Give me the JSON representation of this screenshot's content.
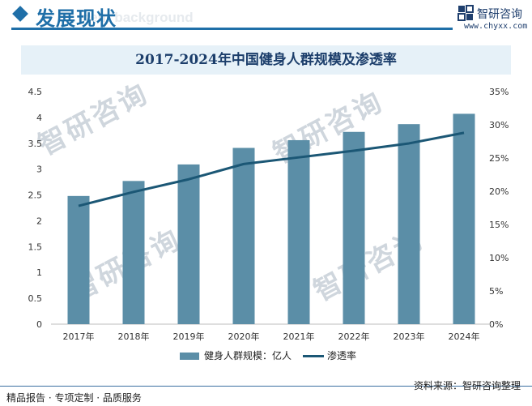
{
  "header": {
    "section_title": "发展现状",
    "section_watermark": "ment background",
    "brand_name": "智研咨询",
    "brand_url": "www.chyxx.com",
    "brand_icon": "zhiyan-logo-icon"
  },
  "footer": {
    "left_text": "精品报告 · 专项定制 · 品质服务",
    "source_text": "资料来源：智研咨询整理",
    "watermark_brand": "智研咨询"
  },
  "colors": {
    "accent": "#1f6fa8",
    "bar": "#5b8ea7",
    "line": "#1b5775",
    "title_band": "#e6f1f8"
  },
  "chart_data": {
    "type": "bar",
    "title": "2017-2024年中国健身人群规模及渗透率",
    "categories": [
      "2017年",
      "2018年",
      "2019年",
      "2020年",
      "2021年",
      "2022年",
      "2023年",
      "2024年"
    ],
    "series": [
      {
        "name": "健身人群规模：亿人",
        "type": "bar",
        "axis": "left",
        "values": [
          2.48,
          2.77,
          3.09,
          3.41,
          3.56,
          3.72,
          3.87,
          4.07
        ]
      },
      {
        "name": "渗透率",
        "type": "line",
        "axis": "right",
        "values": [
          17.8,
          19.9,
          21.8,
          24.1,
          25.1,
          26.1,
          27.2,
          28.8
        ]
      }
    ],
    "yticks_left": [
      "0",
      "0.5",
      "1",
      "1.5",
      "2",
      "2.5",
      "3",
      "3.5",
      "4",
      "4.5"
    ],
    "yticks_right": [
      "0%",
      "5%",
      "10%",
      "15%",
      "20%",
      "25%",
      "30%",
      "35%"
    ],
    "ylim_left": [
      0,
      4.5
    ],
    "ylim_right": [
      0,
      35
    ],
    "grid": false,
    "legend_position": "bottom"
  }
}
